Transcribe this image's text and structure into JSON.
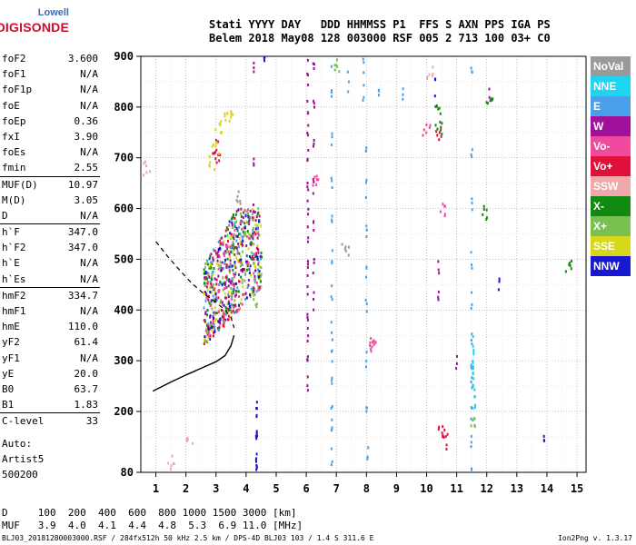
{
  "logo": {
    "line1": "Lowell",
    "line2": "DIGISONDE"
  },
  "header": {
    "line1": "Stati YYYY DAY   DDD HHMMSS P1  FFS S AXN PPS IGA PS",
    "line2": "Belem 2018 May08 128 003000 RSF 005 2 713 100 03+ C0"
  },
  "params": [
    {
      "k": "foF2",
      "v": "3.600"
    },
    {
      "k": "foF1",
      "v": "N/A"
    },
    {
      "k": "foF1p",
      "v": "N/A"
    },
    {
      "k": "foE",
      "v": "N/A"
    },
    {
      "k": "foEp",
      "v": "0.36"
    },
    {
      "k": "fxI",
      "v": "3.90"
    },
    {
      "k": "foEs",
      "v": "N/A"
    },
    {
      "k": "fmin",
      "v": "2.55"
    },
    {
      "k": "MUF(D)",
      "v": "10.97",
      "sep": true
    },
    {
      "k": "M(D)",
      "v": "3.05"
    },
    {
      "k": "D",
      "v": "N/A"
    },
    {
      "k": "h`F",
      "v": "347.0",
      "sep": true
    },
    {
      "k": "h`F2",
      "v": "347.0"
    },
    {
      "k": "h`E",
      "v": "N/A"
    },
    {
      "k": "h`Es",
      "v": "N/A"
    },
    {
      "k": "hmF2",
      "v": "334.7",
      "sep": true
    },
    {
      "k": "hmF1",
      "v": "N/A"
    },
    {
      "k": "hmE",
      "v": "110.0"
    },
    {
      "k": "yF2",
      "v": "61.4"
    },
    {
      "k": "yF1",
      "v": "N/A"
    },
    {
      "k": "yE",
      "v": "20.0"
    },
    {
      "k": "B0",
      "v": "63.7"
    },
    {
      "k": "B1",
      "v": "1.83"
    },
    {
      "k": "C-level",
      "v": "33",
      "sep": true
    }
  ],
  "auto": {
    "line1": "Auto:",
    "line2": "Artist5",
    "line3": "500200"
  },
  "legend": [
    {
      "label": "NoVal",
      "color": "#9a9a9a"
    },
    {
      "label": "NNE",
      "color": "#1fd4ef"
    },
    {
      "label": "E",
      "color": "#4aa0e8"
    },
    {
      "label": "W",
      "color": "#a0109a"
    },
    {
      "label": "Vo-",
      "color": "#f04aa0"
    },
    {
      "label": "Vo+",
      "color": "#e0103a"
    },
    {
      "label": "SSW",
      "color": "#f0a8a8"
    },
    {
      "label": "X-",
      "color": "#108a10"
    },
    {
      "label": "X+",
      "color": "#7ac050"
    },
    {
      "label": "SSE",
      "color": "#d8d81a"
    },
    {
      "label": "NNW",
      "color": "#1818d0"
    }
  ],
  "dmuf": {
    "line1": "D     100  200  400  600  800 1000 1500 3000 [km]",
    "line2": "MUF   3.9  4.0  4.1  4.4  4.8  5.3  6.9 11.0 [MHz]"
  },
  "footer": "BLJ03_20181280003000.RSF / 284fx512h 50 kHz 2.5 km / DPS-4D BLJ03 103 / 1.4 S 311.6 E",
  "version": "Ion2Png v. 1.3.17",
  "chart_data": {
    "type": "scatter",
    "title": "",
    "xlabel": "",
    "ylabel": "",
    "xlim": [
      0.5,
      15.3
    ],
    "ylim": [
      80,
      900
    ],
    "xticks": [
      1,
      2,
      3,
      4,
      5,
      6,
      7,
      8,
      9,
      10,
      11,
      12,
      13,
      14,
      15
    ],
    "yticks": [
      80,
      200,
      300,
      400,
      500,
      600,
      700,
      800,
      900
    ],
    "grid": true,
    "profile_dashed": [
      [
        1.0,
        535
      ],
      [
        1.4,
        505
      ],
      [
        1.8,
        478
      ],
      [
        2.2,
        452
      ],
      [
        2.6,
        432
      ],
      [
        3.0,
        415
      ],
      [
        3.3,
        400
      ],
      [
        3.5,
        385
      ],
      [
        3.6,
        365
      ]
    ],
    "profile_solid": [
      [
        0.9,
        240
      ],
      [
        1.5,
        258
      ],
      [
        2.0,
        272
      ],
      [
        2.5,
        285
      ],
      [
        3.0,
        298
      ],
      [
        3.3,
        310
      ],
      [
        3.5,
        330
      ],
      [
        3.6,
        350
      ]
    ],
    "traces": [
      {
        "name": "W",
        "points": [
          [
            6.05,
            900
          ],
          [
            6.05,
            850
          ],
          [
            6.05,
            800
          ],
          [
            6.05,
            750
          ],
          [
            6.05,
            700
          ],
          [
            6.05,
            650
          ],
          [
            6.05,
            600
          ],
          [
            6.05,
            550
          ],
          [
            6.05,
            500
          ],
          [
            6.05,
            450
          ],
          [
            6.05,
            400
          ],
          [
            6.05,
            350
          ],
          [
            6.05,
            300
          ],
          [
            6.05,
            250
          ],
          [
            6.25,
            880
          ],
          [
            6.25,
            800
          ],
          [
            6.25,
            720
          ],
          [
            6.25,
            640
          ],
          [
            6.25,
            560
          ],
          [
            6.25,
            480
          ],
          [
            6.25,
            420
          ],
          [
            4.25,
            870
          ],
          [
            4.25,
            700
          ],
          [
            4.25,
            600
          ],
          [
            4.4,
            540
          ],
          [
            10.4,
            480
          ],
          [
            10.4,
            440
          ],
          [
            11.0,
            300
          ],
          [
            12.1,
            820
          ]
        ]
      },
      {
        "name": "E",
        "points": [
          [
            6.85,
            890
          ],
          [
            6.85,
            820
          ],
          [
            6.85,
            740
          ],
          [
            6.85,
            660
          ],
          [
            6.85,
            580
          ],
          [
            6.85,
            500
          ],
          [
            6.85,
            430
          ],
          [
            6.85,
            360
          ],
          [
            6.85,
            300
          ],
          [
            6.85,
            250
          ],
          [
            6.85,
            200
          ],
          [
            6.85,
            150
          ],
          [
            6.85,
            110
          ],
          [
            7.9,
            880
          ],
          [
            7.9,
            830
          ],
          [
            8.0,
            720
          ],
          [
            8.0,
            640
          ],
          [
            8.0,
            560
          ],
          [
            8.0,
            480
          ],
          [
            8.0,
            400
          ],
          [
            8.0,
            300
          ],
          [
            8.0,
            200
          ],
          [
            8.05,
            120
          ],
          [
            7.4,
            850
          ],
          [
            8.4,
            820
          ],
          [
            9.2,
            830
          ],
          [
            11.5,
            870
          ],
          [
            11.5,
            720
          ],
          [
            11.5,
            600
          ],
          [
            11.5,
            500
          ],
          [
            11.5,
            420
          ],
          [
            11.5,
            350
          ],
          [
            11.5,
            300
          ],
          [
            11.5,
            250
          ],
          [
            11.5,
            200
          ],
          [
            11.5,
            140
          ],
          [
            11.5,
            90
          ]
        ]
      },
      {
        "name": "NNE",
        "points": [
          [
            11.55,
            330
          ],
          [
            11.55,
            310
          ],
          [
            11.55,
            290
          ],
          [
            11.55,
            270
          ],
          [
            11.55,
            250
          ],
          [
            11.6,
            230
          ],
          [
            11.6,
            210
          ]
        ]
      },
      {
        "name": "Vo+",
        "points": [
          [
            2.8,
            360
          ],
          [
            3.0,
            370
          ],
          [
            3.2,
            380
          ],
          [
            3.4,
            395
          ],
          [
            3.6,
            410
          ],
          [
            3.05,
            720
          ],
          [
            3.0,
            700
          ],
          [
            10.4,
            750
          ],
          [
            10.5,
            160
          ],
          [
            10.6,
            140
          ]
        ]
      },
      {
        "name": "Vo-",
        "points": [
          [
            8.2,
            340
          ],
          [
            8.2,
            330
          ],
          [
            10.0,
            750
          ],
          [
            10.5,
            600
          ],
          [
            6.3,
            650
          ]
        ]
      },
      {
        "name": "X-",
        "points": [
          [
            4.4,
            500
          ],
          [
            10.4,
            800
          ],
          [
            10.4,
            760
          ],
          [
            11.9,
            590
          ],
          [
            12.1,
            820
          ],
          [
            14.7,
            490
          ]
        ]
      },
      {
        "name": "X+",
        "points": [
          [
            4.4,
            460
          ],
          [
            4.35,
            420
          ],
          [
            11.6,
            180
          ],
          [
            7.0,
            880
          ]
        ]
      },
      {
        "name": "SSE",
        "points": [
          [
            2.9,
            690
          ],
          [
            3.0,
            720
          ],
          [
            3.1,
            760
          ],
          [
            3.5,
            800
          ],
          [
            3.4,
            780
          ]
        ]
      },
      {
        "name": "SSW",
        "points": [
          [
            0.7,
            680
          ],
          [
            1.5,
            100
          ],
          [
            2.1,
            140
          ],
          [
            10.1,
            870
          ]
        ]
      },
      {
        "name": "NNW",
        "points": [
          [
            4.35,
            200
          ],
          [
            4.35,
            180
          ],
          [
            4.35,
            160
          ],
          [
            4.35,
            140
          ],
          [
            4.35,
            120
          ],
          [
            4.35,
            100
          ],
          [
            4.35,
            85
          ],
          [
            10.3,
            840
          ],
          [
            12.4,
            450
          ],
          [
            4.6,
            880
          ],
          [
            13.9,
            160
          ]
        ]
      },
      {
        "name": "NoVal",
        "points": [
          [
            3.7,
            620
          ],
          [
            4.1,
            580
          ],
          [
            7.3,
            520
          ]
        ]
      }
    ]
  }
}
